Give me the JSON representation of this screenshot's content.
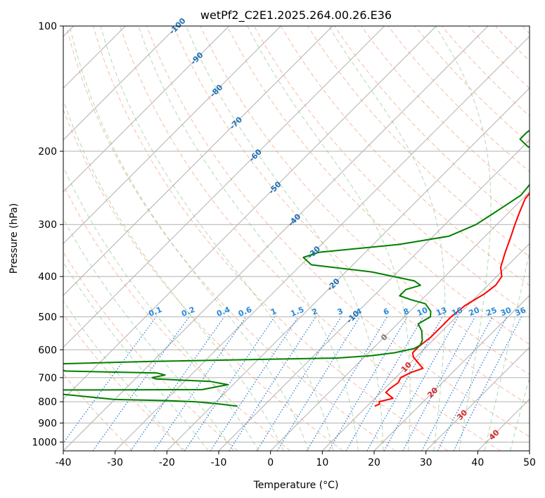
{
  "chart_data": {
    "type": "line",
    "title": "wetPf2_C2E1.2025.264.00.26.E36",
    "xlabel": "Temperature (°C)",
    "ylabel": "Pressure (hPa)",
    "xlim": [
      -40,
      50
    ],
    "ylim": [
      1050,
      100
    ],
    "y_scale": "log",
    "grid": true,
    "x_ticks": [
      -40,
      -30,
      -20,
      -10,
      0,
      10,
      20,
      30,
      40,
      50
    ],
    "y_ticks": [
      100,
      200,
      300,
      400,
      500,
      600,
      700,
      800,
      900,
      1000
    ],
    "isotherm_labels": [
      -100,
      -90,
      -80,
      -70,
      -60,
      -50,
      -40,
      -30,
      -20,
      -10,
      0,
      10,
      20,
      30,
      40
    ],
    "mixing_ratio_labels": [
      "0.1",
      "0.2",
      "0.4",
      "0.6",
      "1",
      "1.5",
      "2",
      "3",
      "4",
      "6",
      "8",
      "10",
      "13",
      "16",
      "20",
      "25",
      "30",
      "36"
    ],
    "mixing_ratio_values": [
      0.1,
      0.2,
      0.4,
      0.6,
      1,
      1.5,
      2,
      3,
      4,
      6,
      8,
      10,
      13,
      16,
      20,
      25,
      30,
      36
    ],
    "series": [
      {
        "color": "#ff0000",
        "points": [
          [
            11.5,
            820
          ],
          [
            12,
            810
          ],
          [
            11.5,
            800
          ],
          [
            13.5,
            785
          ],
          [
            12.5,
            775
          ],
          [
            11,
            760
          ],
          [
            11,
            745
          ],
          [
            11.5,
            720
          ],
          [
            11,
            700
          ],
          [
            12,
            680
          ],
          [
            13.5,
            665
          ],
          [
            11,
            640
          ],
          [
            9.5,
            625
          ],
          [
            8.5,
            610
          ],
          [
            8.5,
            590
          ],
          [
            9,
            560
          ],
          [
            9,
            530
          ],
          [
            9,
            500
          ],
          [
            9.5,
            470
          ],
          [
            11,
            440
          ],
          [
            11.5,
            420
          ],
          [
            11,
            400
          ],
          [
            9,
            380
          ],
          [
            7,
            350
          ],
          [
            5,
            320
          ],
          [
            3.5,
            300
          ],
          [
            2,
            280
          ],
          [
            0.5,
            260
          ],
          [
            0,
            240
          ],
          [
            -0.5,
            220
          ],
          [
            -0.5,
            200
          ],
          [
            0,
            185
          ],
          [
            1.5,
            175
          ],
          [
            3.5,
            165
          ],
          [
            6,
            155
          ],
          [
            9,
            140
          ],
          [
            12,
            125
          ],
          [
            14.5,
            112
          ],
          [
            17,
            100
          ]
        ]
      },
      {
        "color": "#008000",
        "points": [
          [
            -15,
            820
          ],
          [
            -17,
            815
          ],
          [
            -19,
            810
          ],
          [
            -24,
            800
          ],
          [
            -30,
            795
          ],
          [
            -40,
            790
          ],
          [
            -60,
            750
          ],
          [
            -25,
            748
          ],
          [
            -21,
            728
          ],
          [
            -25,
            715
          ],
          [
            -36,
            705
          ],
          [
            -37,
            700
          ],
          [
            -35,
            690
          ],
          [
            -37,
            682
          ],
          [
            -55,
            675
          ],
          [
            -60,
            650
          ],
          [
            -40,
            640
          ],
          [
            -5,
            628
          ],
          [
            1,
            620
          ],
          [
            5,
            610
          ],
          [
            8,
            596
          ],
          [
            8.5,
            585
          ],
          [
            8,
            570
          ],
          [
            6,
            540
          ],
          [
            4,
            520
          ],
          [
            5,
            500
          ],
          [
            4,
            485
          ],
          [
            1.5,
            465
          ],
          [
            -2,
            455
          ],
          [
            -5,
            445
          ],
          [
            -5,
            430
          ],
          [
            -3,
            420
          ],
          [
            -5,
            410
          ],
          [
            -15,
            390
          ],
          [
            -28,
            375
          ],
          [
            -31,
            360
          ],
          [
            -29,
            350
          ],
          [
            -15,
            335
          ],
          [
            -7,
            320
          ],
          [
            -4,
            300
          ],
          [
            -3,
            285
          ],
          [
            -2,
            270
          ],
          [
            -1,
            255
          ],
          [
            -1.5,
            235
          ],
          [
            -2,
            215
          ],
          [
            -4,
            205
          ],
          [
            -9,
            195
          ],
          [
            -12,
            187
          ],
          [
            -12,
            180
          ],
          [
            -11,
            170
          ],
          [
            -9.5,
            158
          ],
          [
            -8,
            145
          ],
          [
            -6,
            135
          ],
          [
            -3,
            125
          ],
          [
            0,
            115
          ],
          [
            2,
            108
          ],
          [
            4,
            100
          ]
        ]
      }
    ]
  }
}
